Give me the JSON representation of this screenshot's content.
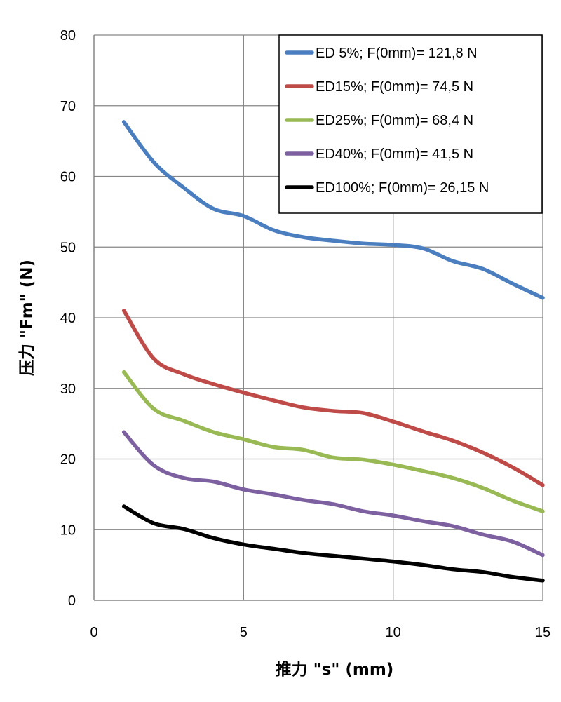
{
  "chart_data": {
    "type": "line",
    "title": "",
    "xlabel": "推力 \"s\" (mm)",
    "ylabel": "压力 \"Fm\" (N)",
    "xlim": [
      0,
      15
    ],
    "ylim": [
      0,
      80
    ],
    "xticks": [
      0,
      5,
      10,
      15
    ],
    "yticks": [
      0,
      10,
      20,
      30,
      40,
      50,
      60,
      70,
      80
    ],
    "grid": "vertical and horizontal major gridlines",
    "legend_position": "top-right",
    "x": [
      1,
      2,
      3,
      4,
      5,
      6,
      7,
      8,
      9,
      10,
      11,
      12,
      13,
      14,
      15
    ],
    "series": [
      {
        "name": "ED 5%; F(0mm)= 121,8 N",
        "color": "#4a7ebf",
        "values": [
          67.7,
          62.0,
          58.4,
          55.4,
          54.4,
          52.4,
          51.4,
          50.9,
          50.5,
          50.3,
          49.8,
          48.0,
          46.9,
          44.8,
          42.8
        ]
      },
      {
        "name": "ED15%; F(0mm)= 74,5 N",
        "color": "#be4b48",
        "values": [
          41.0,
          34.2,
          32.0,
          30.6,
          29.4,
          28.3,
          27.3,
          26.8,
          26.5,
          25.3,
          23.9,
          22.6,
          20.9,
          18.8,
          16.3
        ]
      },
      {
        "name": "ED25%; F(0mm)= 68,4 N",
        "color": "#98b954",
        "values": [
          32.3,
          27.1,
          25.4,
          23.8,
          22.8,
          21.7,
          21.3,
          20.2,
          19.9,
          19.2,
          18.3,
          17.3,
          15.9,
          14.1,
          12.6
        ]
      },
      {
        "name": "ED40%; F(0mm)= 41,5 N",
        "color": "#7d60a0",
        "values": [
          23.8,
          19.1,
          17.3,
          16.8,
          15.7,
          15.0,
          14.2,
          13.6,
          12.6,
          12.0,
          11.2,
          10.5,
          9.3,
          8.3,
          6.4
        ]
      },
      {
        "name": "ED100%; F(0mm)= 26,15 N",
        "color": "#000000",
        "values": [
          13.3,
          10.9,
          10.1,
          8.8,
          7.9,
          7.3,
          6.7,
          6.3,
          5.9,
          5.5,
          5.0,
          4.4,
          4.0,
          3.3,
          2.8
        ]
      }
    ]
  }
}
